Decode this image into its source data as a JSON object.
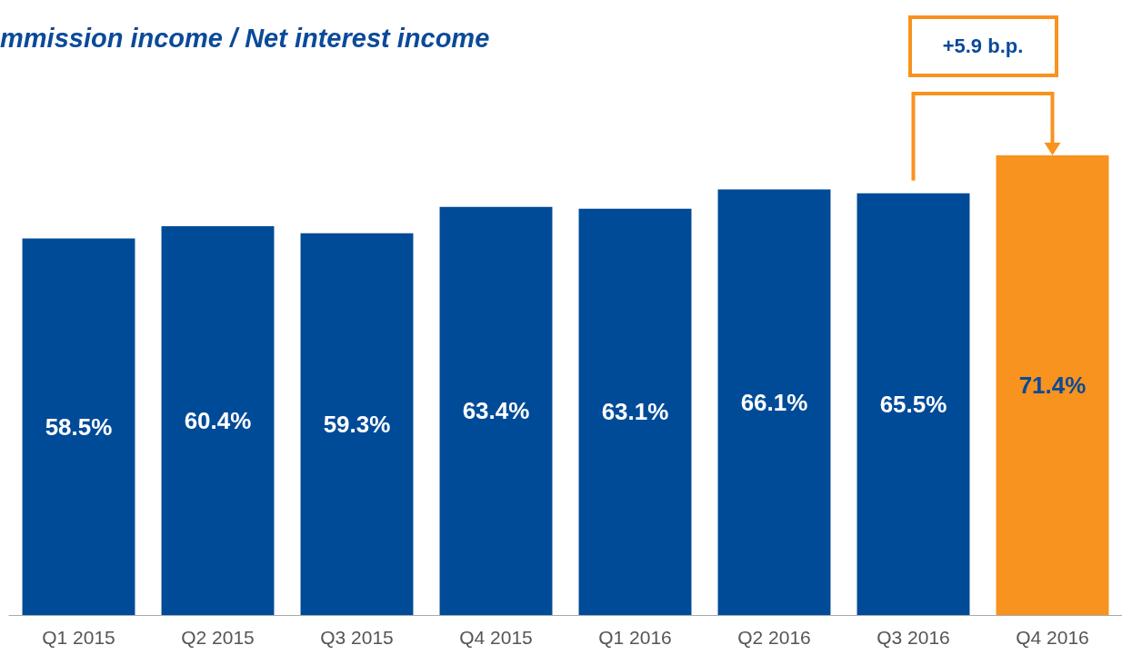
{
  "chart_data": {
    "type": "bar",
    "title": "mmission income / Net interest income",
    "categories": [
      "Q1 2015",
      "Q2 2015",
      "Q3 2015",
      "Q4 2015",
      "Q1 2016",
      "Q2 2016",
      "Q3 2016",
      "Q4 2016"
    ],
    "values": [
      58.5,
      60.4,
      59.3,
      63.4,
      63.1,
      66.1,
      65.5,
      71.4
    ],
    "value_labels": [
      "58.5%",
      "60.4%",
      "59.3%",
      "63.4%",
      "63.1%",
      "66.1%",
      "65.5%",
      "71.4%"
    ],
    "colors": [
      "#004b98",
      "#004b98",
      "#004b98",
      "#004b98",
      "#004b98",
      "#004b98",
      "#004b98",
      "#f7931e"
    ],
    "annotations": [
      "+5.9 b.p."
    ]
  }
}
